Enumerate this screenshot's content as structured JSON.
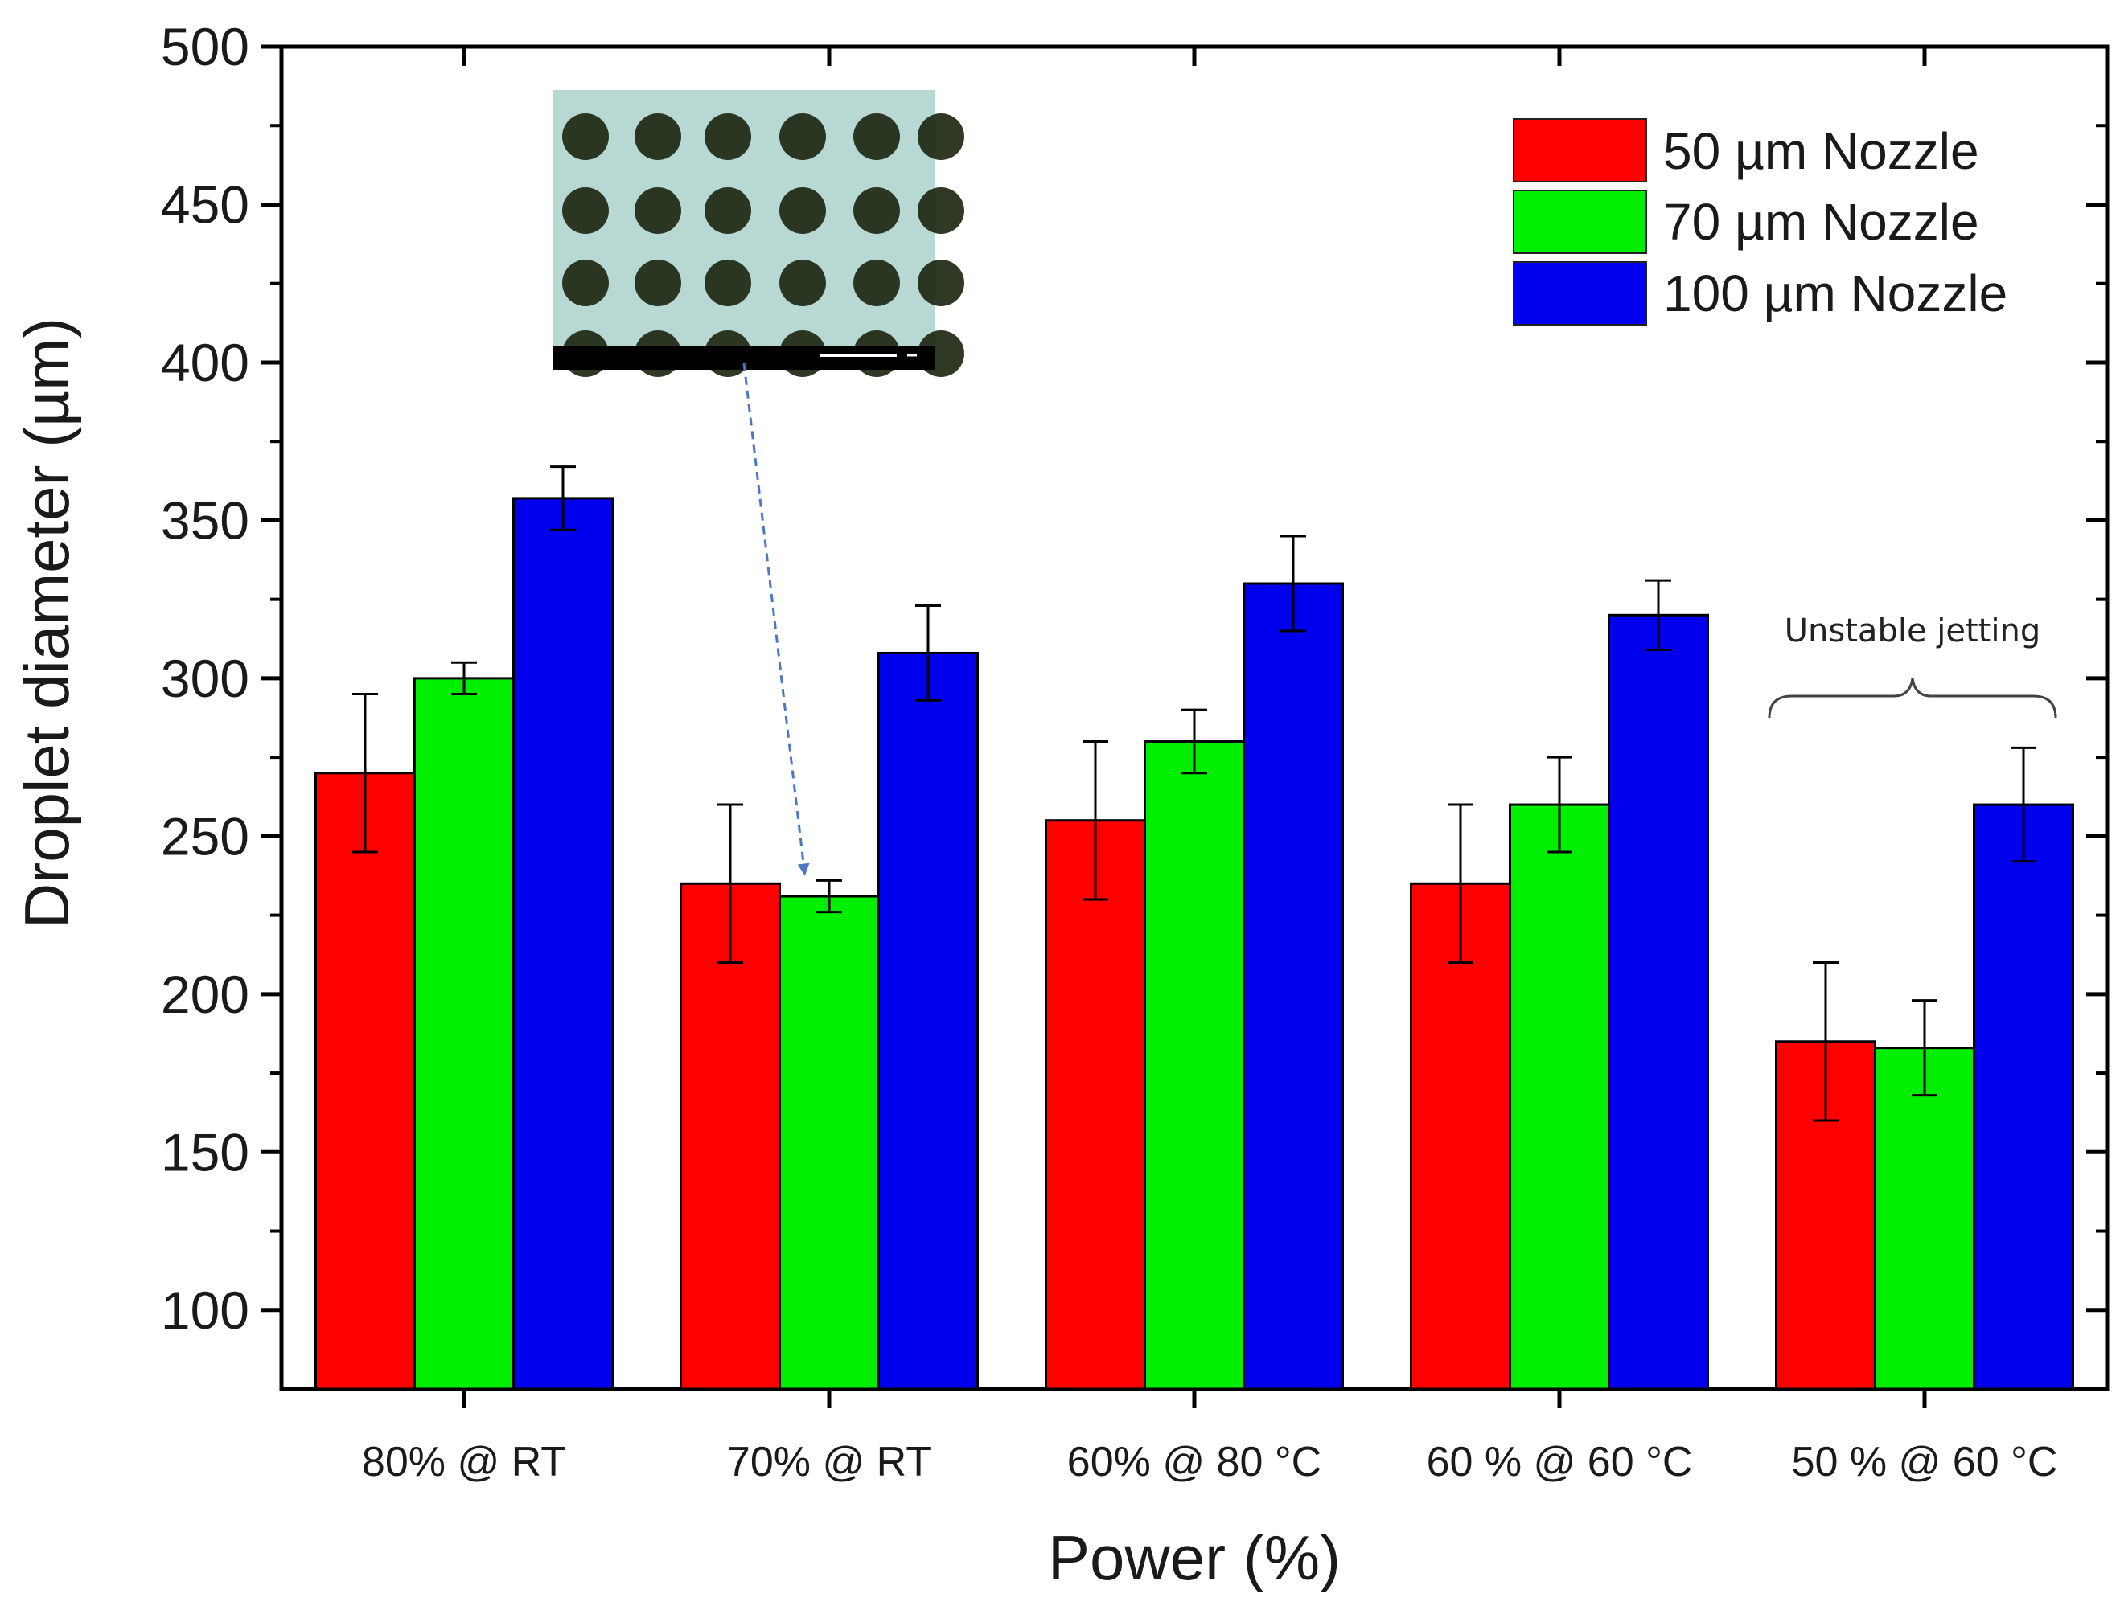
{
  "chart_data": {
    "type": "bar",
    "title": "",
    "xlabel": "Power (%)",
    "ylabel": "Droplet diameter (µm)",
    "ylim": [
      75,
      500
    ],
    "yticks": [
      100,
      150,
      200,
      250,
      300,
      350,
      400,
      450,
      500
    ],
    "yticks_minor": [
      125,
      175,
      225,
      275,
      325,
      375,
      425,
      475
    ],
    "grid": false,
    "legend_position": "top-right",
    "categories": [
      "80% @ RT",
      "70% @ RT",
      "60% @ 80 °C",
      "60 % @ 60 °C",
      "50 % @ 60 °C"
    ],
    "series": [
      {
        "name": "50 µm Nozzle",
        "color": "#ff0000",
        "values": [
          270,
          235,
          255,
          235,
          185
        ],
        "errors": [
          25,
          25,
          25,
          25,
          25
        ]
      },
      {
        "name": "70 µm Nozzle",
        "color": "#00ee00",
        "values": [
          300,
          231,
          280,
          260,
          183
        ],
        "errors": [
          5,
          5,
          10,
          15,
          15
        ]
      },
      {
        "name": "100 µm Nozzle",
        "color": "#0000ee",
        "values": [
          357,
          308,
          330,
          320,
          260
        ],
        "errors": [
          10,
          15,
          15,
          11,
          18
        ]
      }
    ],
    "annotations": [
      {
        "text": "Unstable jetting",
        "target_category": "50 % @ 60 °C"
      }
    ],
    "inset": {
      "description_icon": "micrograph-droplet-array-image",
      "points_to": {
        "category": "70% @ RT",
        "series": "70 µm Nozzle"
      }
    }
  }
}
